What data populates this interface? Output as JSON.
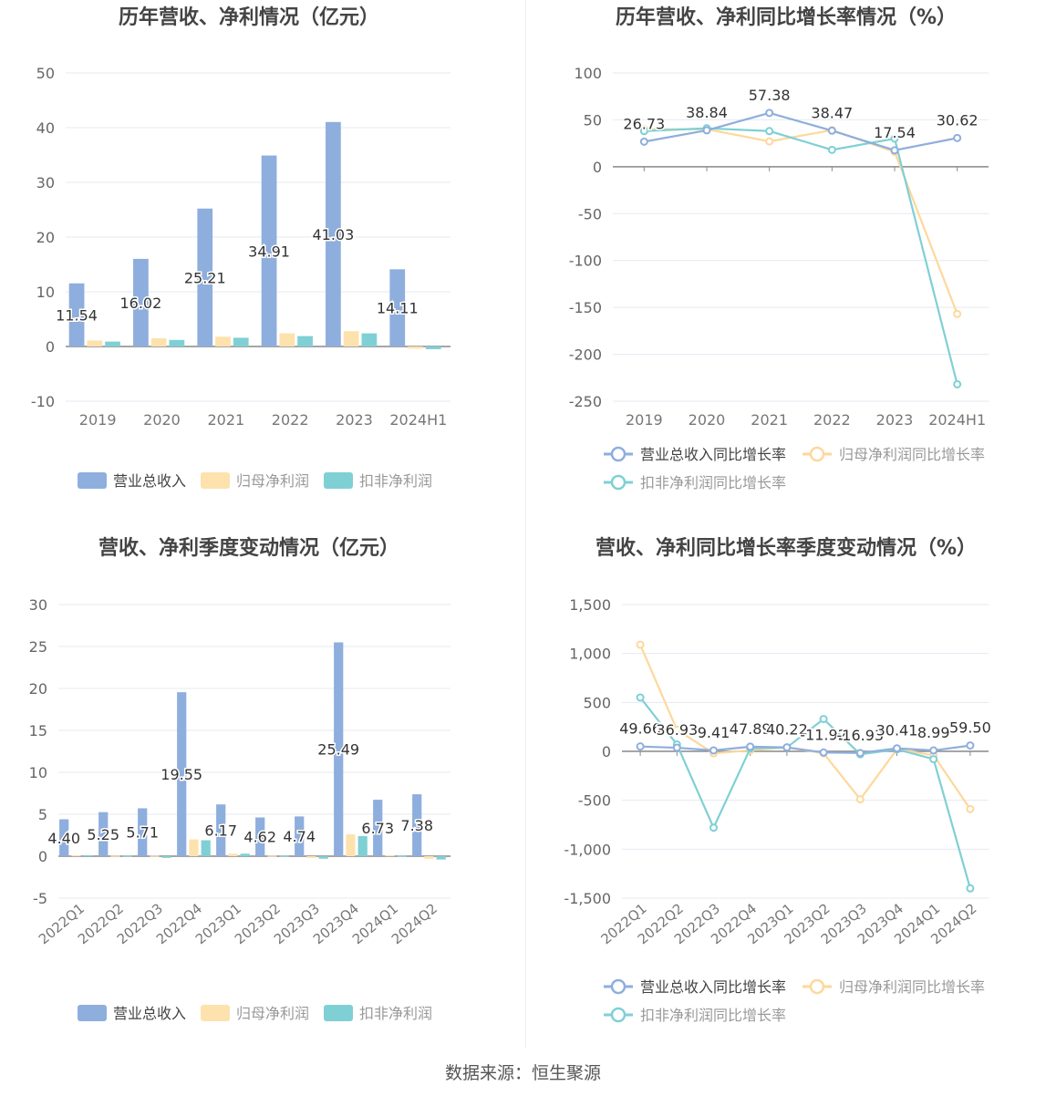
{
  "footer": "数据来源：恒生聚源",
  "chart_data": [
    {
      "id": "annual_bar",
      "type": "bar",
      "title": "历年营收、净利情况（亿元）",
      "categories": [
        "2019",
        "2020",
        "2021",
        "2022",
        "2023",
        "2024H1"
      ],
      "yticks": [
        -10,
        0,
        10,
        20,
        30,
        40,
        50
      ],
      "ylim": [
        -10,
        50
      ],
      "grid": true,
      "legend_position": "bottom",
      "series": [
        {
          "name": "营业总收入",
          "color": "#8eaedd",
          "values": [
            11.54,
            16.02,
            25.21,
            34.91,
            41.03,
            14.11
          ],
          "labels": [
            "11.54",
            "16.02",
            "25.21",
            "34.91",
            "41.03",
            "14.11"
          ]
        },
        {
          "name": "归母净利润",
          "color": "#fde2ae",
          "values": [
            1.1,
            1.5,
            1.8,
            2.4,
            2.8,
            -0.4
          ]
        },
        {
          "name": "扣非净利润",
          "color": "#7fd0d4",
          "values": [
            0.9,
            1.2,
            1.6,
            1.9,
            2.4,
            -0.5
          ]
        }
      ]
    },
    {
      "id": "annual_line",
      "type": "line",
      "title": "历年营收、净利同比增长率情况（%）",
      "categories": [
        "2019",
        "2020",
        "2021",
        "2022",
        "2023",
        "2024H1"
      ],
      "yticks": [
        -250,
        -200,
        -150,
        -100,
        -50,
        0,
        50,
        100
      ],
      "ylim": [
        -250,
        100
      ],
      "grid": true,
      "legend_position": "bottom",
      "series": [
        {
          "name": "营业总收入同比增长率",
          "color": "#8eaedd",
          "values": [
            26.73,
            38.84,
            57.38,
            38.47,
            17.54,
            30.62
          ],
          "labels": [
            "26.73",
            "38.84",
            "57.38",
            "38.47",
            "17.54",
            "30.62"
          ]
        },
        {
          "name": "归母净利润同比增长率",
          "color": "#fdd89c",
          "values": [
            40,
            40,
            27,
            39,
            16,
            -157
          ]
        },
        {
          "name": "扣非净利润同比增长率",
          "color": "#7fd0d4",
          "values": [
            38,
            41,
            38,
            18,
            30,
            -232
          ]
        }
      ]
    },
    {
      "id": "quarter_bar",
      "type": "bar",
      "title": "营收、净利季度变动情况（亿元）",
      "categories": [
        "2022Q1",
        "2022Q2",
        "2022Q3",
        "2022Q4",
        "2023Q1",
        "2023Q2",
        "2023Q3",
        "2023Q4",
        "2024Q1",
        "2024Q2"
      ],
      "yticks": [
        -5,
        0,
        5,
        10,
        15,
        20,
        25,
        30
      ],
      "ylim": [
        -5,
        30
      ],
      "grid": true,
      "legend_position": "bottom",
      "series": [
        {
          "name": "营业总收入",
          "color": "#8eaedd",
          "values": [
            4.4,
            5.25,
            5.71,
            19.55,
            6.17,
            4.62,
            4.74,
            25.49,
            6.73,
            7.38
          ],
          "labels": [
            "4.40",
            "5.25",
            "5.71",
            "19.55",
            "6.17",
            "4.62",
            "4.74",
            "25.49",
            "6.73",
            "7.38"
          ]
        },
        {
          "name": "归母净利润",
          "color": "#fde2ae",
          "values": [
            0.1,
            0.05,
            0.05,
            2.0,
            0.3,
            0.05,
            -0.2,
            2.6,
            0.1,
            -0.3
          ]
        },
        {
          "name": "扣非净利润",
          "color": "#7fd0d4",
          "values": [
            0.1,
            0.05,
            -0.2,
            1.9,
            0.3,
            0.05,
            -0.3,
            2.4,
            0.05,
            -0.4
          ]
        }
      ]
    },
    {
      "id": "quarter_line",
      "type": "line",
      "title": "营收、净利同比增长率季度变动情况（%）",
      "categories": [
        "2022Q1",
        "2022Q2",
        "2022Q3",
        "2022Q4",
        "2023Q1",
        "2023Q2",
        "2023Q3",
        "2023Q4",
        "2024Q1",
        "2024Q2"
      ],
      "yticks": [
        -1500,
        -1000,
        -500,
        0,
        500,
        1000,
        1500
      ],
      "ytick_labels": [
        "-1,500",
        "-1,000",
        "-500",
        "0",
        "500",
        "1,000",
        "1,500"
      ],
      "ylim": [
        -1500,
        1500
      ],
      "grid": true,
      "legend_position": "bottom",
      "series": [
        {
          "name": "营业总收入同比增长率",
          "color": "#8eaedd",
          "values": [
            49.66,
            36.93,
            9.41,
            47.89,
            40.22,
            -11.92,
            -16.93,
            30.41,
            8.99,
            59.5
          ],
          "labels": [
            "49.66",
            "36.93",
            "9.41",
            "47.89",
            "40.22",
            "-11.92",
            "-16.93",
            "30.41",
            "8.99",
            "59.50"
          ]
        },
        {
          "name": "归母净利润同比增长率",
          "color": "#fdd89c",
          "values": [
            1090,
            220,
            -20,
            10,
            40,
            -20,
            -490,
            20,
            -40,
            -590
          ]
        },
        {
          "name": "扣非净利润同比增长率",
          "color": "#7fd0d4",
          "values": [
            550,
            70,
            -780,
            30,
            40,
            330,
            -30,
            20,
            -80,
            -1400
          ]
        }
      ]
    }
  ]
}
